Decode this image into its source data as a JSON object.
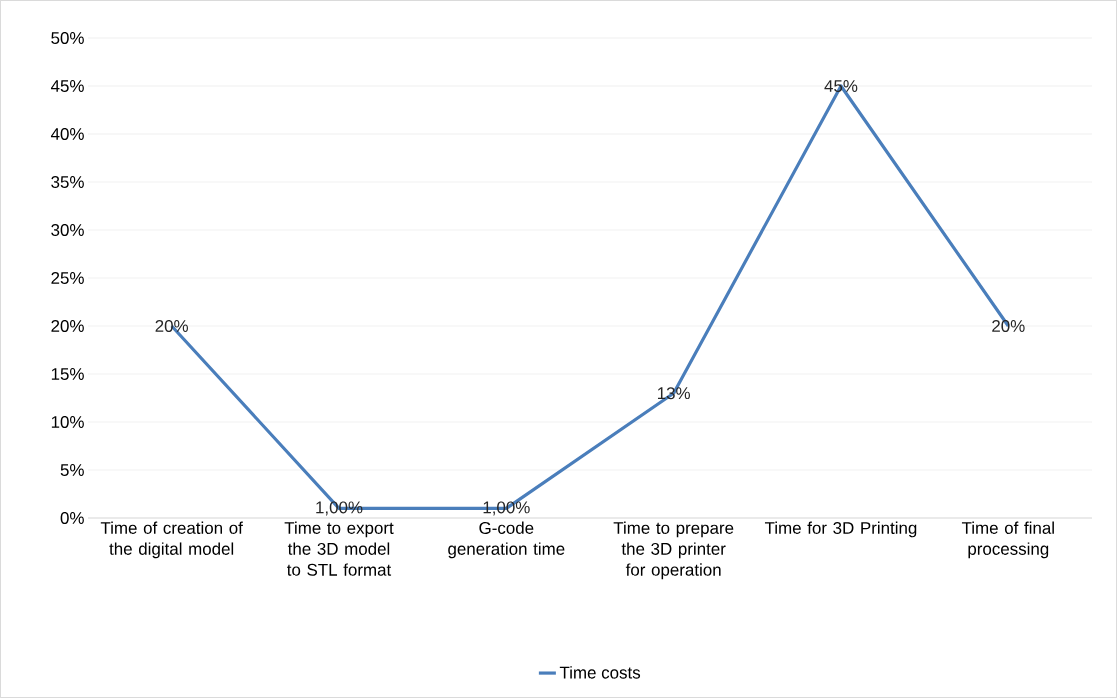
{
  "chart_data": {
    "type": "line",
    "categories": [
      "Time of creation of the digital model",
      "Time to export the 3D model to STL format",
      "G-code generation time",
      "Time to prepare the 3D printer for operation",
      "Time for 3D Printing",
      "Time of final processing"
    ],
    "series": [
      {
        "name": "Time costs",
        "color": "#4a7ebb",
        "values": [
          20,
          1,
          1,
          13,
          45,
          20
        ],
        "value_labels": [
          "20%",
          "1,00%",
          "1,00%",
          "13%",
          "45%",
          "20%"
        ]
      }
    ],
    "ylim": [
      0,
      50
    ],
    "yticks": [
      {
        "value": 0,
        "label": "0%"
      },
      {
        "value": 5,
        "label": "5%"
      },
      {
        "value": 10,
        "label": "10%"
      },
      {
        "value": 15,
        "label": "15%"
      },
      {
        "value": 20,
        "label": "20%"
      },
      {
        "value": 25,
        "label": "25%"
      },
      {
        "value": 30,
        "label": "30%"
      },
      {
        "value": 35,
        "label": "35%"
      },
      {
        "value": 40,
        "label": "40%"
      },
      {
        "value": 45,
        "label": "45%"
      },
      {
        "value": 50,
        "label": "50%"
      }
    ],
    "grid": "y",
    "legend": "bottom",
    "marker": "none",
    "line_style": "solid"
  }
}
